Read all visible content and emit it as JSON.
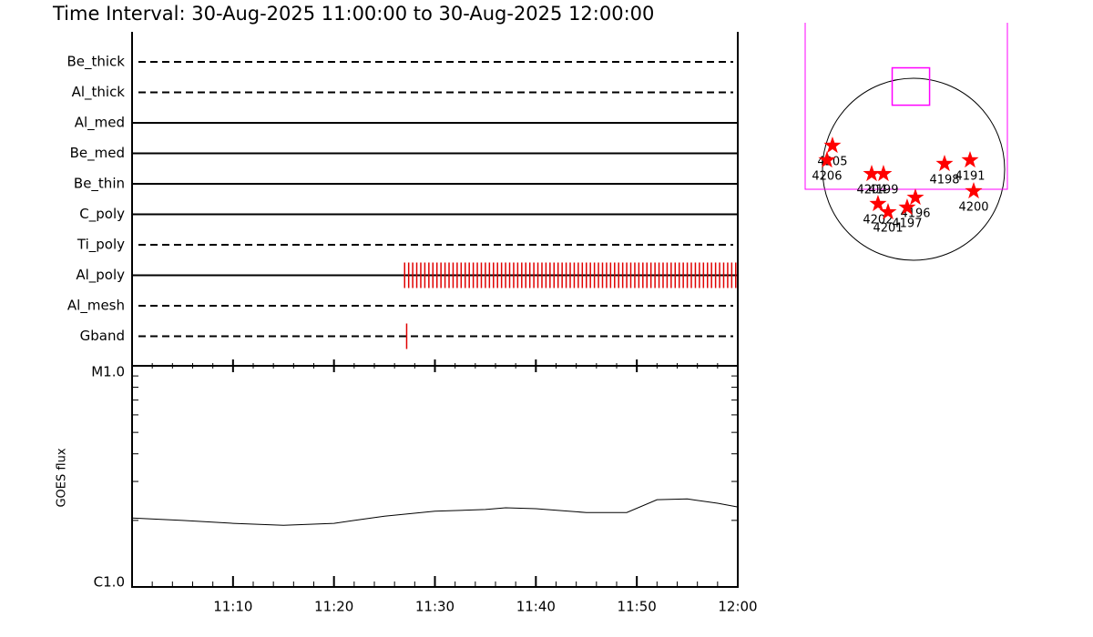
{
  "title": "Time Interval: 30-Aug-2025 11:00:00 to 30-Aug-2025 12:00:00",
  "chart_data": [
    {
      "type": "timeline",
      "xlim": [
        0,
        60
      ],
      "xticks": [
        {
          "value": 10,
          "label": "11:10"
        },
        {
          "value": 20,
          "label": "11:20"
        },
        {
          "value": 30,
          "label": "11:30"
        },
        {
          "value": 40,
          "label": "11:40"
        },
        {
          "value": 50,
          "label": "11:50"
        },
        {
          "value": 60,
          "label": "12:00"
        }
      ],
      "xminorticks": [
        2,
        4,
        6,
        8,
        12,
        14,
        16,
        18,
        22,
        24,
        26,
        28,
        32,
        34,
        36,
        38,
        42,
        44,
        46,
        48,
        52,
        54,
        56,
        58
      ],
      "event_color": "#e00000",
      "rows": [
        {
          "name": "Be_thick",
          "style": "dashed",
          "events": []
        },
        {
          "name": "Al_thick",
          "style": "dashed",
          "events": []
        },
        {
          "name": "Al_med",
          "style": "solid",
          "events": []
        },
        {
          "name": "Be_med",
          "style": "solid",
          "events": []
        },
        {
          "name": "Be_thin",
          "style": "solid",
          "events": []
        },
        {
          "name": "C_poly",
          "style": "solid",
          "events": []
        },
        {
          "name": "Ti_poly",
          "style": "dashed",
          "events": []
        },
        {
          "name": "Al_poly",
          "style": "solid",
          "events": [
            27.0,
            27.4,
            27.8,
            28.2,
            28.6,
            29.0,
            29.4,
            29.8,
            30.2,
            30.6,
            31.0,
            31.4,
            31.8,
            32.2,
            32.6,
            33.0,
            33.4,
            33.8,
            34.2,
            34.6,
            35.0,
            35.4,
            35.8,
            36.2,
            36.6,
            37.0,
            37.4,
            37.8,
            38.2,
            38.6,
            39.0,
            39.4,
            39.8,
            40.2,
            40.6,
            41.0,
            41.4,
            41.8,
            42.2,
            42.6,
            43.0,
            43.4,
            43.8,
            44.2,
            44.6,
            45.0,
            45.4,
            45.8,
            46.2,
            46.6,
            47.0,
            47.4,
            47.8,
            48.2,
            48.6,
            49.0,
            49.4,
            49.8,
            50.2,
            50.6,
            51.0,
            51.4,
            51.8,
            52.2,
            52.6,
            53.0,
            53.4,
            53.8,
            54.2,
            54.6,
            55.0,
            55.4,
            55.8,
            56.2,
            56.6,
            57.0,
            57.4,
            57.8,
            58.2,
            58.6,
            59.0,
            59.4,
            59.8
          ]
        },
        {
          "name": "Al_mesh",
          "style": "dashed",
          "events": []
        },
        {
          "name": "Gband",
          "style": "dashed",
          "events": [
            27.2
          ]
        }
      ]
    },
    {
      "type": "line",
      "y_label": "GOES flux",
      "log_scale": true,
      "color": "#000000",
      "x": [
        0,
        5,
        10,
        15,
        20,
        22,
        25,
        30,
        35,
        37,
        40,
        45,
        49,
        52,
        55,
        58,
        60
      ],
      "values": [
        2.05e-06,
        2e-06,
        1.94e-06,
        1.9e-06,
        1.94e-06,
        2e-06,
        2.09e-06,
        2.2e-06,
        2.24e-06,
        2.28e-06,
        2.26e-06,
        2.17e-06,
        2.17e-06,
        2.48e-06,
        2.5e-06,
        2.39e-06,
        2.3e-06
      ],
      "xlim": [
        0,
        60
      ],
      "ylim": [
        1e-06,
        1e-05
      ],
      "yticks": [
        {
          "value": 1e-06,
          "label": "C1.0"
        },
        {
          "value": 1e-05,
          "label": "M1.0"
        }
      ],
      "yminorticks": [
        2e-06,
        3e-06,
        4e-06,
        5e-06,
        6e-06,
        7e-06,
        8e-06,
        9e-06
      ]
    }
  ],
  "sun_map": {
    "star_color": "#ff0000",
    "fov_color": "#ff00ff",
    "fov": {
      "xcen": -28,
      "ycen": 864,
      "width": 390,
      "height": 390
    },
    "regions": [
      {
        "label": "4205",
        "x": -846,
        "y": 247
      },
      {
        "label": "4206",
        "x": -903,
        "y": 95
      },
      {
        "label": "4204",
        "x": -437,
        "y": -48
      },
      {
        "label": "4199",
        "x": -314,
        "y": -48
      },
      {
        "label": "4202",
        "x": -371,
        "y": -361
      },
      {
        "label": "4201",
        "x": -266,
        "y": -447
      },
      {
        "label": "4196",
        "x": 19,
        "y": -295
      },
      {
        "label": "4197",
        "x": -67,
        "y": -399
      },
      {
        "label": "4198",
        "x": 323,
        "y": 57
      },
      {
        "label": "4191",
        "x": 589,
        "y": 95
      },
      {
        "label": "4200",
        "x": 627,
        "y": -228
      }
    ]
  }
}
